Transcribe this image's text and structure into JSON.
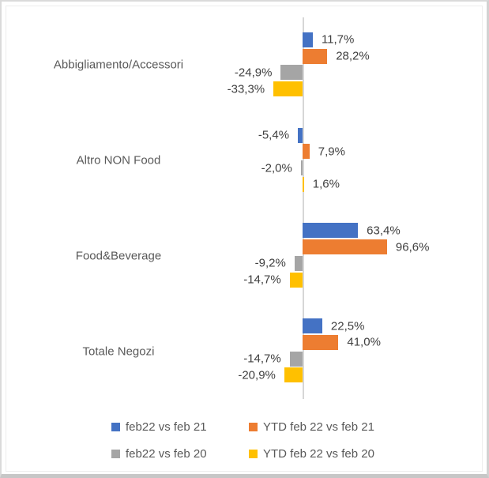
{
  "chart_data": {
    "type": "bar",
    "orientation": "horizontal",
    "title": "",
    "xlabel": "",
    "ylabel": "",
    "value_format": "percent-italian-decimal-comma",
    "grid": false,
    "zero_axis_line": true,
    "legend_position": "bottom",
    "categories": [
      "Abbigliamento/Accessori",
      "Altro NON Food",
      "Food&Beverage",
      "Totale Negozi"
    ],
    "series": [
      {
        "name": "feb22 vs feb 21",
        "color": "#4472C4",
        "values": [
          11.7,
          -5.4,
          63.4,
          22.5
        ],
        "labels": [
          "11,7%",
          "-5,4%",
          "63,4%",
          "22,5%"
        ]
      },
      {
        "name": "YTD feb 22 vs feb 21",
        "color": "#ED7D31",
        "values": [
          28.2,
          7.9,
          96.6,
          41.0
        ],
        "labels": [
          "28,2%",
          "7,9%",
          "96,6%",
          "41,0%"
        ]
      },
      {
        "name": "feb22 vs feb 20",
        "color": "#A5A5A5",
        "values": [
          -24.9,
          -2.0,
          -9.2,
          -14.7
        ],
        "labels": [
          "-24,9%",
          "-2,0%",
          "-9,2%",
          "-14,7%"
        ]
      },
      {
        "name": "YTD feb 22 vs feb 20",
        "color": "#FFC000",
        "values": [
          -33.3,
          1.6,
          -14.7,
          -20.9
        ],
        "labels": [
          "-33,3%",
          "1,6%",
          "-14,7%",
          "-20,9%"
        ]
      }
    ],
    "colors": {
      "data_label_text": "#404040",
      "category_text": "#595959",
      "legend_text": "#595959",
      "axis_line": "#d6d6d6"
    }
  }
}
